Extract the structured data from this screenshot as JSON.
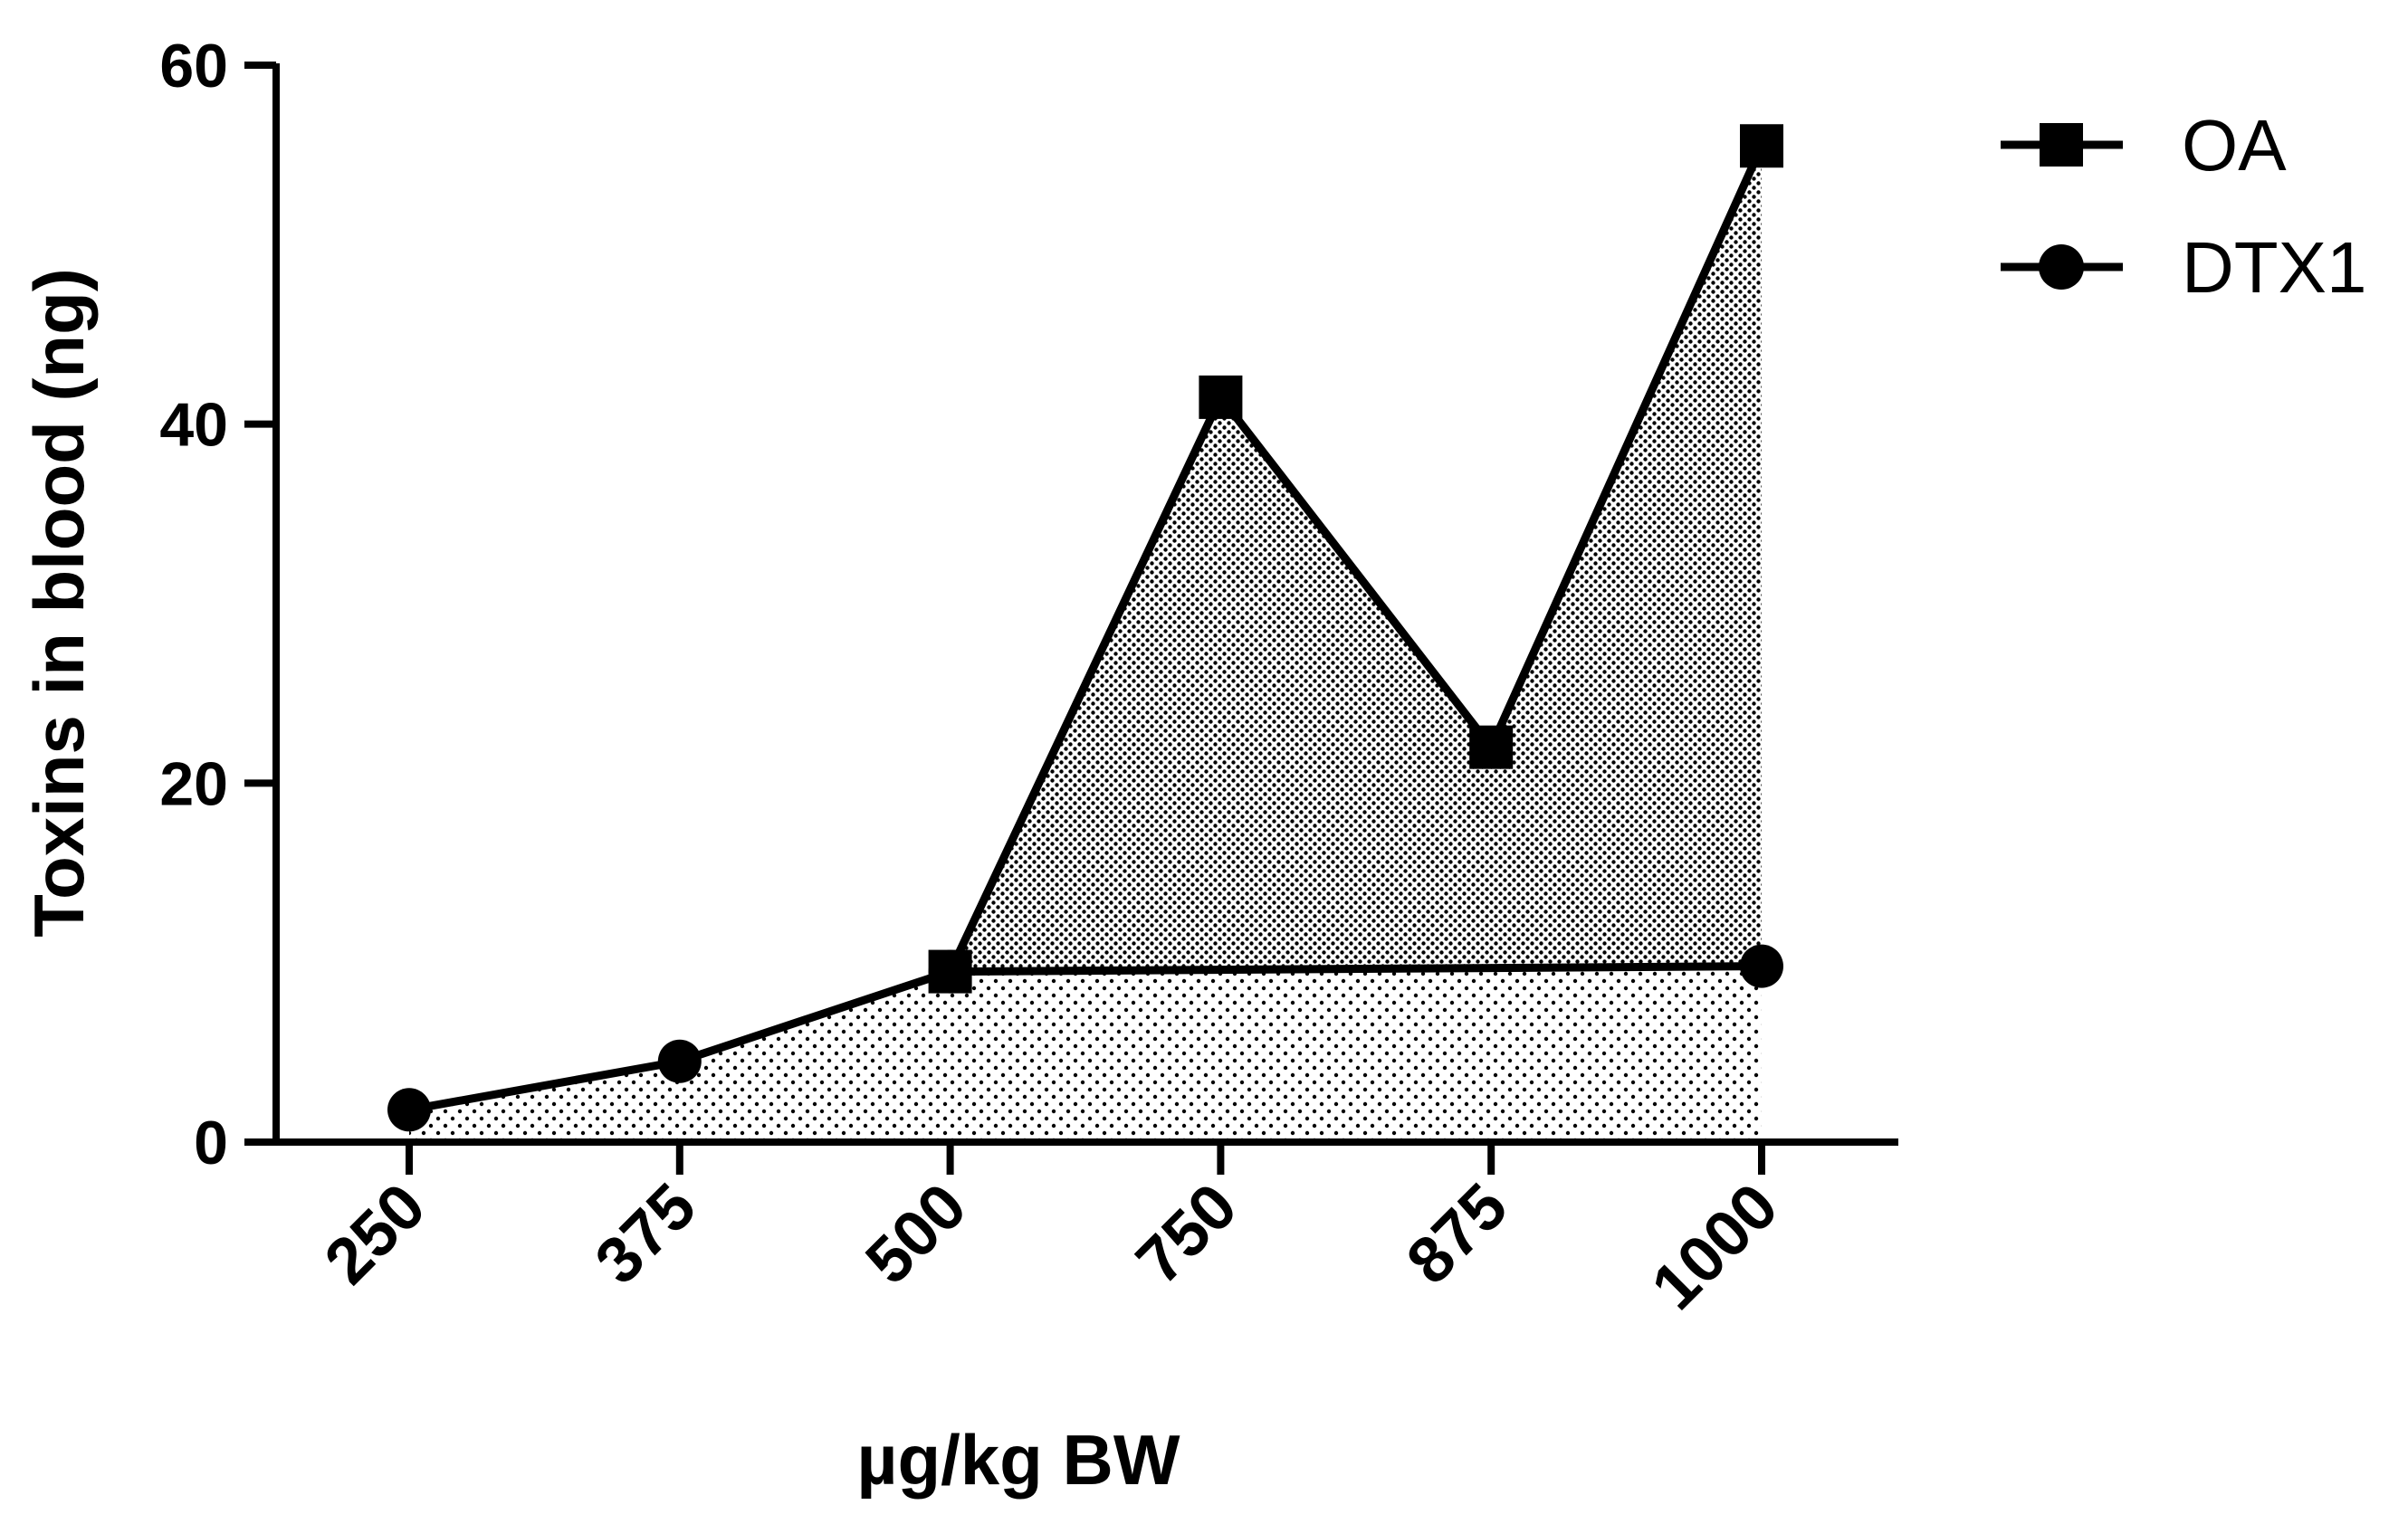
{
  "chart_data": {
    "type": "area",
    "categories": [
      "250",
      "375",
      "500",
      "750",
      "875",
      "1000"
    ],
    "xlabel": "µg/kg BW",
    "ylabel": "Toxins in blood (ng)",
    "ylim": [
      0,
      60
    ],
    "yticks": [
      "0",
      "20",
      "40",
      "60"
    ],
    "grid": false,
    "legend_position": "top-right",
    "series": [
      {
        "name": "OA",
        "marker": "square",
        "values": [
          null,
          null,
          9.5,
          41.5,
          22,
          55.5
        ],
        "fill": "dense-dots"
      },
      {
        "name": "DTX1",
        "marker": "circle",
        "values": [
          1.8,
          4.5,
          9.5,
          null,
          null,
          9.8
        ],
        "fill": "sparse-dots"
      }
    ],
    "colors": {
      "line": "#000000",
      "background": "#ffffff"
    }
  }
}
